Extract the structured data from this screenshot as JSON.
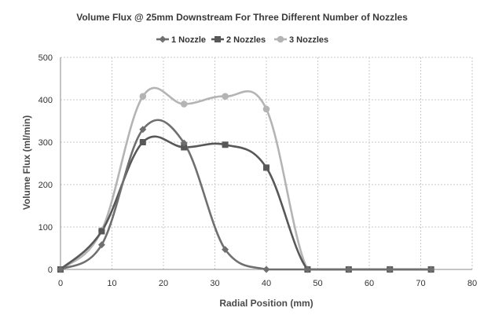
{
  "chart_data": {
    "type": "line",
    "title": "Volume Flux @ 25mm Downstream For Three Different Number of Nozzles",
    "xlabel": "Radial Position (mm)",
    "ylabel": "Volume Flux (ml/min)",
    "xlim": [
      0,
      80
    ],
    "ylim": [
      0,
      500
    ],
    "xticks": [
      0,
      10,
      20,
      30,
      40,
      50,
      60,
      70,
      80
    ],
    "yticks": [
      0,
      100,
      200,
      300,
      400,
      500
    ],
    "grid": true,
    "legend_position": "top-center",
    "series": [
      {
        "name": "1 Nozzle",
        "color": "#6f6f6f",
        "marker": "diamond",
        "points": [
          [
            0,
            0
          ],
          [
            8,
            58
          ],
          [
            16,
            330
          ],
          [
            24,
            298
          ],
          [
            32,
            47
          ],
          [
            40,
            0
          ],
          [
            48,
            0
          ],
          [
            56,
            0
          ],
          [
            64,
            0
          ],
          [
            72,
            0
          ]
        ]
      },
      {
        "name": "2 Nozzles",
        "color": "#585858",
        "marker": "square",
        "points": [
          [
            0,
            0
          ],
          [
            8,
            90
          ],
          [
            16,
            300
          ],
          [
            24,
            288
          ],
          [
            32,
            294
          ],
          [
            40,
            240
          ],
          [
            48,
            0
          ],
          [
            56,
            0
          ],
          [
            64,
            0
          ],
          [
            72,
            0
          ]
        ]
      },
      {
        "name": "3 Nozzles",
        "color": "#b4b4b4",
        "marker": "circle",
        "points": [
          [
            0,
            0
          ],
          [
            8,
            92
          ],
          [
            16,
            408
          ],
          [
            24,
            390
          ],
          [
            32,
            408
          ],
          [
            40,
            378
          ],
          [
            48,
            0
          ],
          [
            56,
            0
          ],
          [
            64,
            0
          ],
          [
            72,
            0
          ]
        ]
      }
    ]
  }
}
